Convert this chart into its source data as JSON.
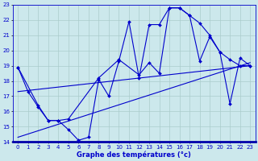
{
  "xlabel": "Graphe des températures (°c)",
  "xlim": [
    -0.5,
    23.5
  ],
  "ylim": [
    14,
    23
  ],
  "yticks": [
    14,
    15,
    16,
    17,
    18,
    19,
    20,
    21,
    22,
    23
  ],
  "xticks": [
    0,
    1,
    2,
    3,
    4,
    5,
    6,
    7,
    8,
    9,
    10,
    11,
    12,
    13,
    14,
    15,
    16,
    17,
    18,
    19,
    20,
    21,
    22,
    23
  ],
  "background_color": "#cce8ec",
  "grid_color": "#aacccc",
  "line_color": "#0000cc",
  "line1_x": [
    0,
    1,
    2,
    3,
    4,
    5,
    6,
    7,
    8,
    9,
    10,
    11,
    12,
    13,
    14,
    15,
    16,
    17,
    18,
    19,
    20,
    21,
    22,
    23
  ],
  "line1_y": [
    18.9,
    17.3,
    16.3,
    15.4,
    15.4,
    14.8,
    14.1,
    14.3,
    18.1,
    17.0,
    19.3,
    21.9,
    18.2,
    21.7,
    21.7,
    22.8,
    22.8,
    22.3,
    21.8,
    21.0,
    19.9,
    19.4,
    19.0,
    19.0
  ],
  "line2_x": [
    0,
    2,
    3,
    4,
    5,
    8,
    10,
    12,
    13,
    14,
    15,
    16,
    17,
    18,
    19,
    20,
    21,
    22,
    23
  ],
  "line2_y": [
    18.9,
    16.4,
    15.4,
    15.4,
    15.5,
    18.2,
    19.4,
    18.4,
    19.2,
    18.5,
    22.8,
    22.8,
    22.3,
    19.3,
    20.9,
    19.9,
    16.5,
    19.5,
    19.0
  ],
  "line3_x": [
    0,
    23
  ],
  "line3_y": [
    14.3,
    19.2
  ],
  "line4_x": [
    0,
    23
  ],
  "line4_y": [
    17.3,
    19.0
  ]
}
